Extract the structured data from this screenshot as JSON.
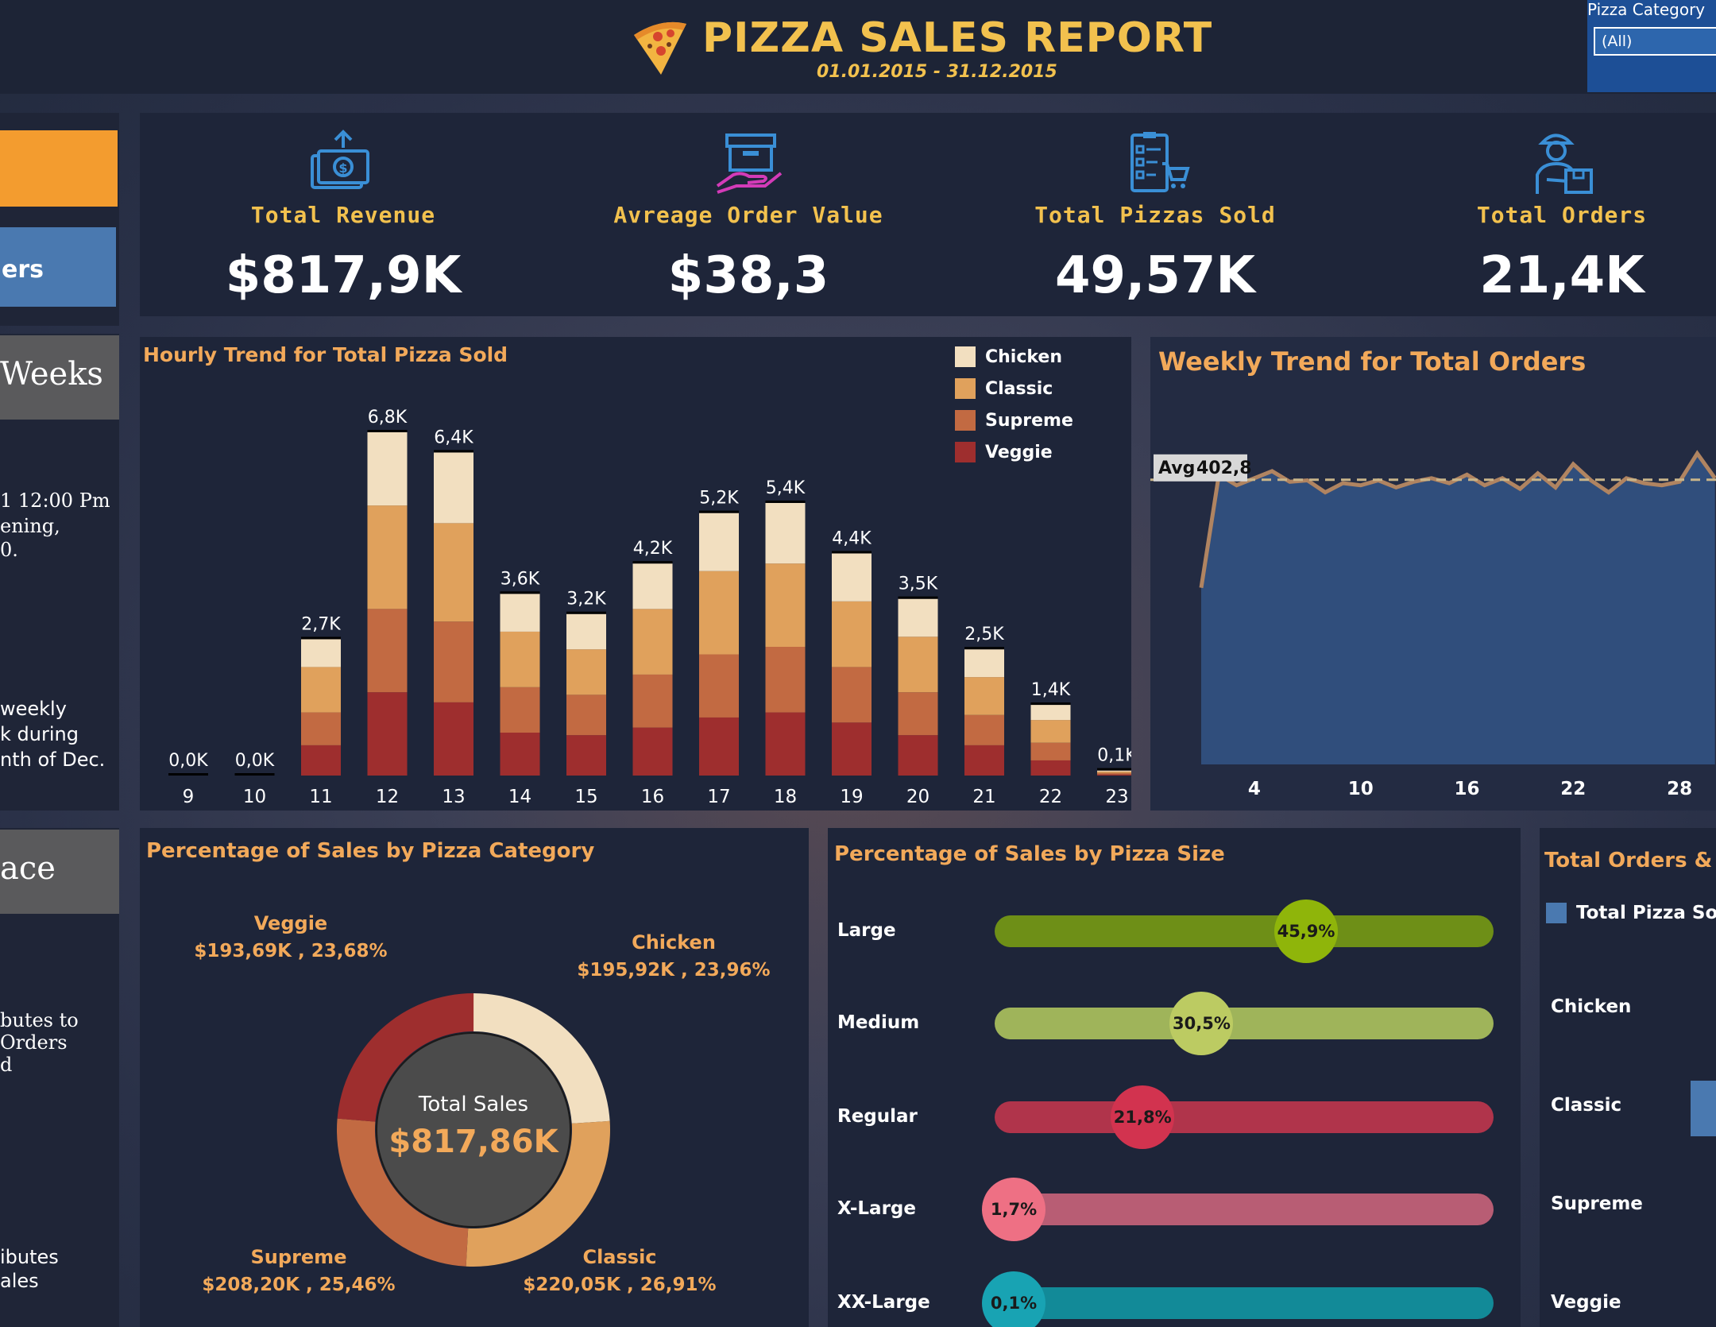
{
  "header": {
    "title": "PIZZA SALES REPORT",
    "dates": "01.01.2015 - 31.12.2015",
    "filter_label": "Pizza Category",
    "filter_value": "(All)"
  },
  "sidebar": {
    "button_top_label": "",
    "button_orders_label": "ers",
    "section_weeks": "Weeks",
    "weeks_note_lines": [
      "1 12:00 Pm",
      "ening,",
      "0."
    ],
    "weekly_note_lines": [
      "weekly",
      "k during",
      "nth of Dec."
    ],
    "section_place": "ace",
    "place_note_lines": [
      "butes to",
      "Orders",
      "d"
    ],
    "place_note2_lines": [
      "ibutes",
      "ales"
    ]
  },
  "kpis": [
    {
      "label": "Total Revenue",
      "value": "$817,9K",
      "icon": "money-up-icon"
    },
    {
      "label": "Avreage Order Value",
      "value": "$38,3",
      "icon": "box-hand-icon"
    },
    {
      "label": "Total Pizzas Sold",
      "value": "49,57K",
      "icon": "checklist-cart-icon"
    },
    {
      "label": "Total Orders",
      "value": "21,4K",
      "icon": "delivery-person-icon"
    }
  ],
  "colors": {
    "chicken": "#f2dfc0",
    "classic": "#e0a15c",
    "supreme": "#c26a42",
    "veggie": "#9e2e2e",
    "accent": "#f2c14e",
    "title": "#f2a95a",
    "large": "#6e8f17",
    "medium": "#9fb45a",
    "regular": "#b0344b",
    "xlarge": "#b85d74",
    "xxlarge": "#128a98"
  },
  "chart_data": [
    {
      "type": "bar",
      "title": "Hourly Trend for Total Pizza Sold",
      "categories": [
        "9",
        "10",
        "11",
        "12",
        "13",
        "14",
        "15",
        "16",
        "17",
        "18",
        "19",
        "20",
        "21",
        "22",
        "23"
      ],
      "totals_labels": [
        "0,0K",
        "0,0K",
        "2,7K",
        "6,8K",
        "6,4K",
        "3,6K",
        "3,2K",
        "4,2K",
        "5,2K",
        "5,4K",
        "4,4K",
        "3,5K",
        "2,5K",
        "1,4K",
        "0,1K"
      ],
      "totals": [
        0.0,
        0.0,
        2.7,
        6.8,
        6.4,
        3.6,
        3.2,
        4.2,
        5.2,
        5.4,
        4.4,
        3.5,
        2.5,
        1.4,
        0.1
      ],
      "series": [
        {
          "name": "Chicken",
          "values": [
            0.0,
            0.0,
            0.55,
            1.45,
            1.4,
            0.75,
            0.7,
            0.9,
            1.15,
            1.2,
            0.95,
            0.75,
            0.55,
            0.3,
            0.02
          ]
        },
        {
          "name": "Classic",
          "values": [
            0.0,
            0.0,
            0.9,
            2.05,
            1.95,
            1.1,
            0.9,
            1.3,
            1.65,
            1.65,
            1.3,
            1.1,
            0.75,
            0.45,
            0.03
          ]
        },
        {
          "name": "Supreme",
          "values": [
            0.0,
            0.0,
            0.65,
            1.65,
            1.6,
            0.9,
            0.8,
            1.05,
            1.25,
            1.3,
            1.1,
            0.85,
            0.6,
            0.35,
            0.03
          ]
        },
        {
          "name": "Veggie",
          "values": [
            0.0,
            0.0,
            0.6,
            1.65,
            1.45,
            0.85,
            0.8,
            0.95,
            1.15,
            1.25,
            1.05,
            0.8,
            0.6,
            0.3,
            0.02
          ]
        }
      ],
      "legend_position": "top-right",
      "grid": false
    },
    {
      "type": "area",
      "title": "Weekly Trend for Total Orders",
      "x": [
        1,
        2,
        3,
        4,
        5,
        6,
        7,
        8,
        9,
        10,
        11,
        12,
        13,
        14,
        15,
        16,
        17,
        18,
        19,
        20,
        21,
        22,
        23,
        24,
        25,
        26,
        27,
        28,
        29,
        30
      ],
      "values": [
        250,
        410,
        395,
        405,
        415,
        400,
        402,
        385,
        398,
        395,
        402,
        392,
        400,
        405,
        398,
        410,
        395,
        405,
        390,
        412,
        392,
        425,
        402,
        385,
        405,
        398,
        395,
        400,
        440,
        405
      ],
      "x_ticks": [
        "4",
        "10",
        "16",
        "22",
        "28"
      ],
      "x_tick_values": [
        4,
        10,
        16,
        22,
        28
      ],
      "avg_label": "Avg",
      "avg_value_label": "402,8",
      "avg_value": 402.8
    },
    {
      "type": "pie",
      "title": "Percentage of Sales by Pizza Category",
      "center_label": "Total Sales",
      "center_value": "$817,86K",
      "slices": [
        {
          "name": "Chicken",
          "value_label": "$195,92K , 23,96%",
          "percent": 23.96
        },
        {
          "name": "Classic",
          "value_label": "$220,05K , 26,91%",
          "percent": 26.91
        },
        {
          "name": "Supreme",
          "value_label": "$208,20K , 25,46%",
          "percent": 25.46
        },
        {
          "name": "Veggie",
          "value_label": "$193,69K , 23,68%",
          "percent": 23.68
        }
      ]
    },
    {
      "type": "bar",
      "title": "Percentage of Sales by Pizza Size",
      "categories": [
        "Large",
        "Medium",
        "Regular",
        "X-Large",
        "XX-Large"
      ],
      "values": [
        45.9,
        30.5,
        21.8,
        1.7,
        0.1
      ],
      "value_labels": [
        "45,9%",
        "30,5%",
        "21,8%",
        "1,7%",
        "0,1%"
      ]
    },
    {
      "type": "bar",
      "title": "Total Orders & Piz",
      "legend": "Total Pizza Sold",
      "categories": [
        "Chicken",
        "Classic",
        "Supreme",
        "Veggie"
      ]
    }
  ]
}
